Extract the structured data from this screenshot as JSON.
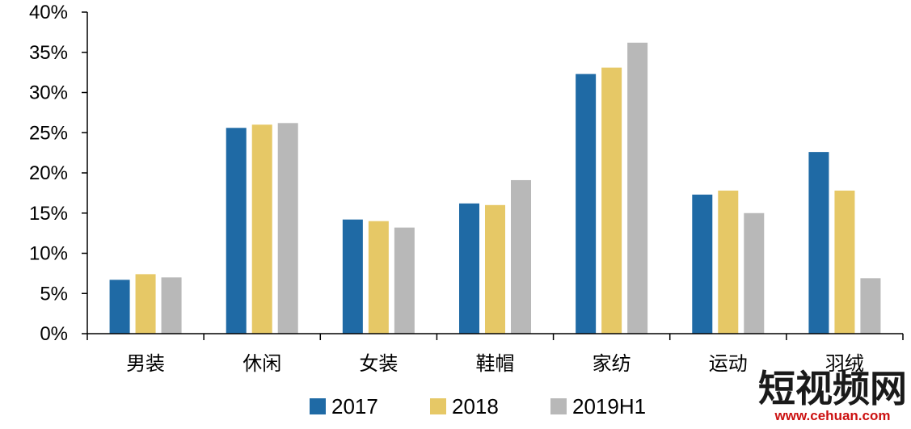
{
  "chart_data": {
    "type": "bar",
    "categories": [
      "男装",
      "休闲",
      "女装",
      "鞋帽",
      "家纺",
      "运动",
      "羽绒"
    ],
    "series": [
      {
        "name": "2017",
        "color": "#1f6aa5",
        "values": [
          6.7,
          25.6,
          14.2,
          16.2,
          32.3,
          17.3,
          22.6
        ]
      },
      {
        "name": "2018",
        "color": "#e6c866",
        "values": [
          7.4,
          26.0,
          14.0,
          16.0,
          33.1,
          17.8,
          17.8
        ]
      },
      {
        "name": "2019H1",
        "color": "#b8b8b8",
        "values": [
          7.0,
          26.2,
          13.2,
          19.1,
          36.2,
          15.0,
          6.9
        ]
      }
    ],
    "ylim": [
      0,
      40
    ],
    "yticks": [
      "0%",
      "5%",
      "10%",
      "15%",
      "20%",
      "25%",
      "30%",
      "35%",
      "40%"
    ],
    "title": "",
    "xlabel": "",
    "ylabel": "",
    "grid": false,
    "legend_position": "bottom"
  },
  "watermark": {
    "text": "短视频网",
    "url": "www.cehuan.com"
  }
}
